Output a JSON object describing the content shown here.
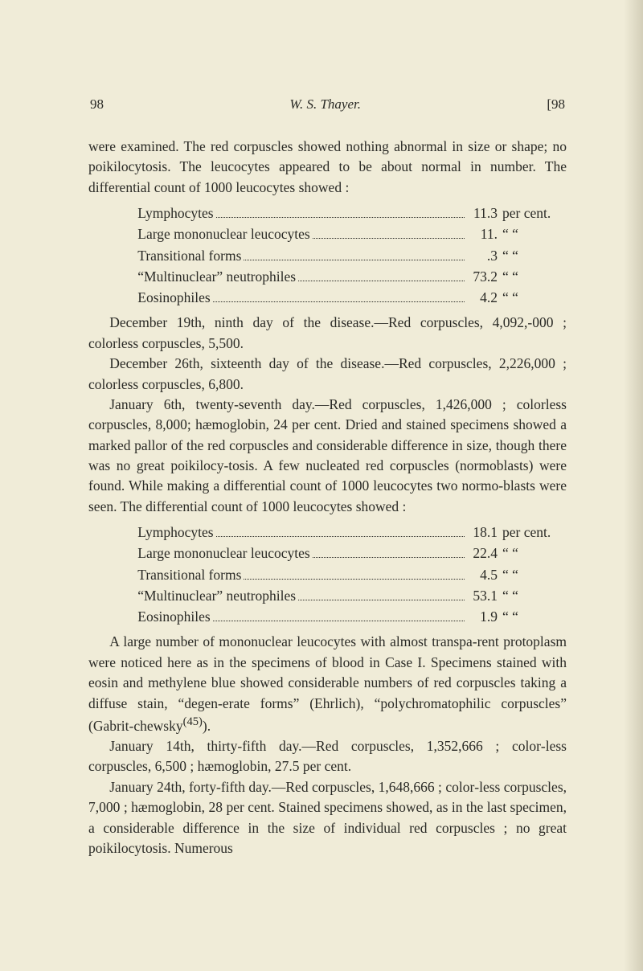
{
  "header": {
    "page_left": "98",
    "center": "W. S. Thayer.",
    "page_right": "[98"
  },
  "para1a": "were examined.  The red corpuscles showed nothing abnormal in size or shape; no poikilocytosis.  The leucocytes appeared to be about normal in number.  The differential count of 1000 leucocytes showed :",
  "table1": {
    "rows": [
      {
        "label": "Lymphocytes",
        "value": "11.3",
        "unit": "per cent."
      },
      {
        "label": "Large mononuclear leucocytes",
        "value": "11.",
        "unit": "“     “"
      },
      {
        "label": "Transitional forms",
        "value": ".3",
        "unit": "“     “"
      },
      {
        "label": "“Multinuclear” neutrophiles",
        "value": "73.2",
        "unit": "“     “"
      },
      {
        "label": "Eosinophiles",
        "value": "4.2",
        "unit": "“     “"
      }
    ]
  },
  "para2": "December 19th, ninth day of the disease.—Red corpuscles, 4,092,‑000 ; colorless corpuscles, 5,500.",
  "para3": "December 26th, sixteenth day of the disease.—Red corpuscles, 2,226,000 ; colorless corpuscles, 6,800.",
  "para4": "January 6th, twenty-seventh day.—Red corpuscles, 1,426,000 ; colorless corpuscles, 8,000; hæmoglobin, 24 per cent.  Dried and stained specimens showed a marked pallor of the red corpuscles and considerable difference in size, though there was no great poikilocy‑tosis.  A few nucleated red corpuscles (normoblasts) were found. While making a differential count of 1000 leucocytes two normo‑blasts were seen.  The differential count of 1000 leucocytes showed :",
  "table2": {
    "rows": [
      {
        "label": "Lymphocytes",
        "value": "18.1",
        "unit": "per cent."
      },
      {
        "label": "Large mononuclear leucocytes",
        "value": "22.4",
        "unit": "“     “"
      },
      {
        "label": "Transitional forms",
        "value": "4.5",
        "unit": "“     “"
      },
      {
        "label": "“Multinuclear” neutrophiles",
        "value": "53.1",
        "unit": "“     “"
      },
      {
        "label": "Eosinophiles",
        "value": "1.9",
        "unit": "“     “"
      }
    ]
  },
  "para5": "A large number of mononuclear leucocytes with almost transpa‑rent protoplasm were noticed here as in the specimens of blood in Case I.  Specimens stained with eosin and methylene blue showed considerable numbers of red corpuscles taking a diffuse stain, “degen‑erate forms” (Ehrlich), “polychromatophilic corpuscles” (Gabrit‑chewsky⁽⁴⁵⁾).",
  "para5_plain_a": "A large number of mononuclear leucocytes with almost transpa‑rent protoplasm were noticed here as in the specimens of blood in Case I.  Specimens stained with eosin and methylene blue showed considerable numbers of red corpuscles taking a diffuse stain, “degen‑erate forms” (Ehrlich), “polychromatophilic corpuscles” (Gabrit‑chewsky",
  "para5_sup": "(45)",
  "para5_plain_b": ").",
  "para6": "January 14th, thirty-fifth day.—Red corpuscles, 1,352,666 ; color‑less corpuscles, 6,500 ; hæmoglobin, 27.5 per cent.",
  "para7": "January 24th, forty-fifth day.—Red corpuscles, 1,648,666 ; color‑less corpuscles, 7,000 ; hæmoglobin, 28 per cent.  Stained specimens showed, as in the last specimen, a considerable difference in the size of individual red corpuscles ; no great poikilocytosis.  Numerous"
}
